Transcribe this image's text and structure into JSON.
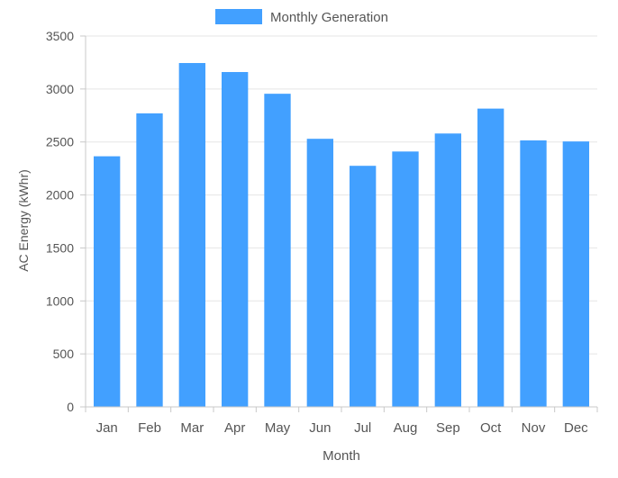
{
  "chart_data": {
    "type": "bar",
    "title": "",
    "xlabel": "Month",
    "ylabel": "AC Energy (kWhr)",
    "categories": [
      "Jan",
      "Feb",
      "Mar",
      "Apr",
      "May",
      "Jun",
      "Jul",
      "Aug",
      "Sep",
      "Oct",
      "Nov",
      "Dec"
    ],
    "series": [
      {
        "name": "Monthly Generation",
        "values": [
          2365,
          2770,
          3245,
          3160,
          2955,
          2530,
          2275,
          2410,
          2580,
          2815,
          2515,
          2505
        ]
      }
    ],
    "ylim": [
      0,
      3500
    ],
    "yticks": [
      0,
      500,
      1000,
      1500,
      2000,
      2500,
      3000,
      3500
    ],
    "grid": true,
    "legend": "top-center",
    "colors": {
      "bar": "#42a0ff",
      "grid": "#e5e5e5",
      "axis": "#c8c8c8",
      "text": "#555555"
    }
  }
}
